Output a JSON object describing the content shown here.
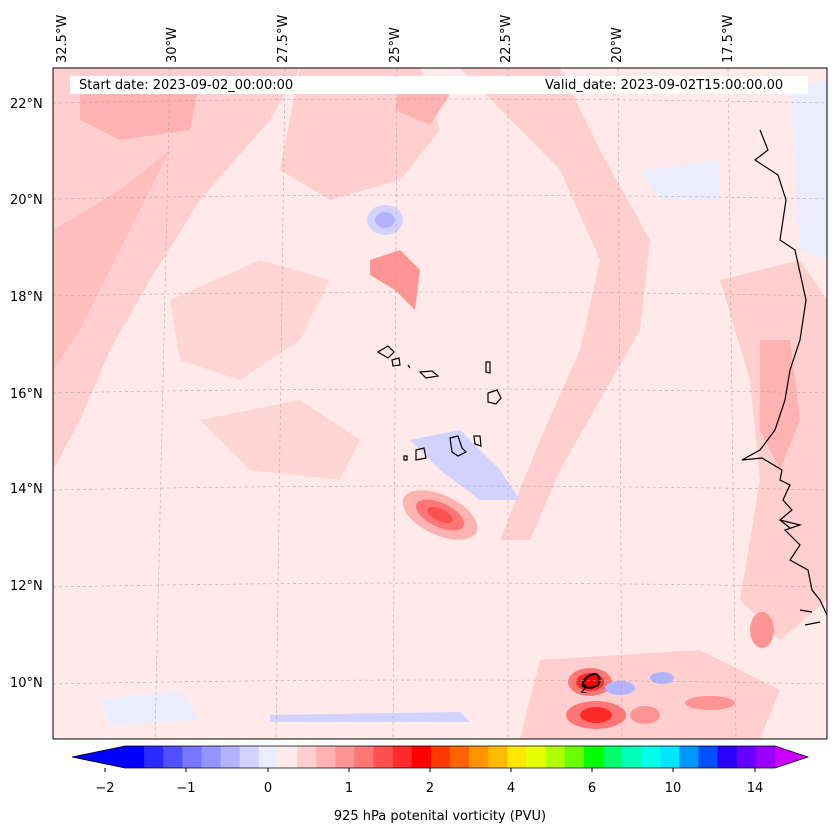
{
  "map": {
    "lon_labels": [
      "32.5°W",
      "30°W",
      "27.5°W",
      "25°W",
      "22.5°W",
      "20°W",
      "17.5°W"
    ],
    "lat_labels": [
      "22°N",
      "20°N",
      "18°N",
      "16°N",
      "14°N",
      "12°N",
      "10°N"
    ],
    "start_date": "Start date: 2023-09-02_00:00:00",
    "valid_date": "Valid_date: 2023-09-02T15:00:00.00",
    "contour_label": "2",
    "background_color": "#ffe9e9"
  },
  "colorbar": {
    "label": "925 hPa potenital vorticity (PVU)",
    "tick_labels": [
      "−2",
      "−1",
      "0",
      "1",
      "2",
      "4",
      "6",
      "10",
      "14"
    ],
    "colors": [
      "#0000ff",
      "#2a2aff",
      "#5050ff",
      "#7676ff",
      "#9494ff",
      "#b2b2ff",
      "#d2d2ff",
      "#ececff",
      "#ffe9e9",
      "#ffcfcf",
      "#ffb2b2",
      "#ff9494",
      "#ff7676",
      "#ff5050",
      "#ff2a2a",
      "#ff0000",
      "#ff3a00",
      "#ff6400",
      "#ff9400",
      "#ffbb00",
      "#ffe800",
      "#e8ff00",
      "#b0ff00",
      "#6aff00",
      "#00ff00",
      "#00ff6a",
      "#00ffb8",
      "#00ffe6",
      "#00e6ff",
      "#0096ff",
      "#0050ff",
      "#2a00ff",
      "#6600ff",
      "#9900ff"
    ],
    "under_color": "#0000ff",
    "over_color": "#cc00ff"
  }
}
